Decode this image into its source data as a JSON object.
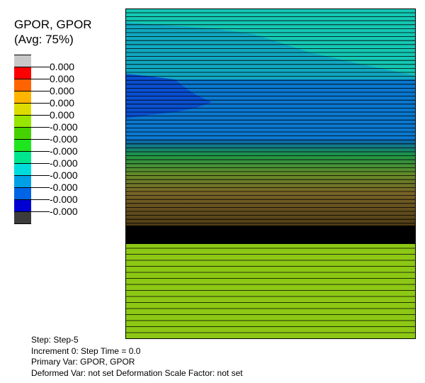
{
  "legend": {
    "title_line1": "GPOR, GPOR",
    "title_line2": "(Avg: 75%)",
    "colors": [
      "#c8c8c8",
      "#ff0000",
      "#ff6400",
      "#ffb400",
      "#dcdc00",
      "#96e600",
      "#46d200",
      "#1ee61e",
      "#00e68c",
      "#00dcdc",
      "#00a0e6",
      "#0064e6",
      "#0000d2",
      "#3c3c3c"
    ],
    "tick_labels": [
      "0.000",
      "0.000",
      "0.000",
      "0.000",
      "0.000",
      "-0.000",
      "-0.000",
      "-0.000",
      "-0.000",
      "-0.000",
      "-0.000",
      "-0.000",
      "-0.000"
    ]
  },
  "info": {
    "step": "Step: Step-5",
    "increment": "Increment 0: Step Time = 0.0",
    "primary_var": "Primary Var: GPOR, GPOR",
    "deformed_var": "Deformed Var: not set   Deformation Scale Factor: not set"
  },
  "plot": {
    "colors": {
      "cyan": "#14c8b4",
      "teal": "#10a8c0",
      "blue": "#0a78d0",
      "deep_blue": "#0a50d2",
      "band_blue": "#0a64b4",
      "green": "#1e9646",
      "olive": "#648c28",
      "brown": "#786428",
      "dark_brown": "#503c14",
      "black": "#000000",
      "lime": "#8cc814"
    }
  }
}
